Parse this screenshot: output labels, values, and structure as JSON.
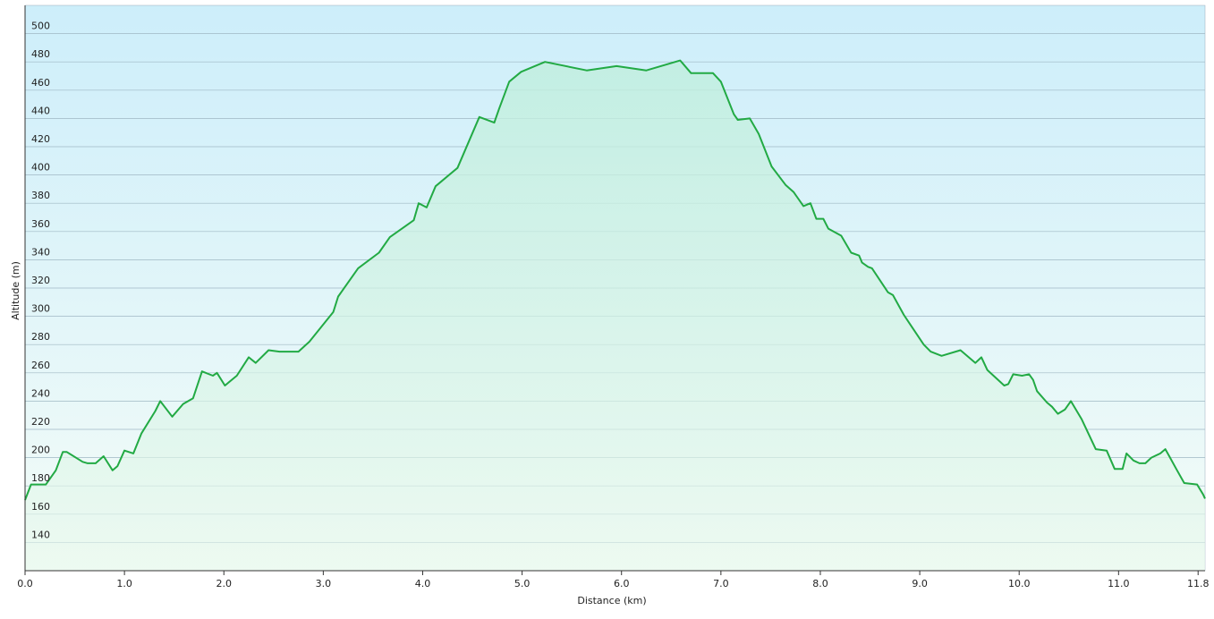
{
  "chart_data": {
    "type": "line",
    "xlabel": "Distance  (km)",
    "ylabel": "Altitude (m)",
    "x": [
      0,
      0.06,
      0.21,
      0.31,
      0.38,
      0.42,
      0.58,
      0.63,
      0.71,
      0.79,
      0.88,
      0.93,
      1.0,
      1.09,
      1.17,
      1.31,
      1.36,
      1.48,
      1.59,
      1.69,
      1.78,
      1.89,
      1.93,
      2.01,
      2.13,
      2.25,
      2.32,
      2.45,
      2.56,
      2.75,
      2.86,
      3.1,
      3.15,
      3.35,
      3.56,
      3.67,
      3.91,
      3.96,
      4.04,
      4.13,
      4.35,
      4.57,
      4.72,
      4.77,
      4.87,
      4.99,
      5.23,
      5.65,
      5.95,
      6.25,
      6.59,
      6.7,
      6.92,
      7.0,
      7.13,
      7.17,
      7.29,
      7.38,
      7.51,
      7.65,
      7.73,
      7.83,
      7.9,
      7.96,
      8.03,
      8.08,
      8.21,
      8.31,
      8.39,
      8.42,
      8.48,
      8.52,
      8.68,
      8.73,
      8.84,
      9.04,
      9.11,
      9.22,
      9.41,
      9.56,
      9.62,
      9.68,
      9.85,
      9.89,
      9.94,
      10.03,
      10.1,
      10.14,
      10.18,
      10.28,
      10.33,
      10.39,
      10.46,
      10.52,
      10.63,
      10.77,
      10.88,
      10.93,
      10.96,
      11.04,
      11.08,
      11.15,
      11.21,
      11.27,
      11.33,
      11.42,
      11.47,
      11.51,
      11.58,
      11.66,
      11.79,
      11.85,
      11.87
    ],
    "values": [
      170,
      181,
      181,
      191,
      204,
      204,
      197,
      196,
      196,
      201,
      191,
      194,
      205,
      203,
      217,
      233,
      240,
      229,
      238,
      242,
      261,
      258,
      260,
      251,
      258,
      271,
      267,
      276,
      275,
      275,
      282,
      303,
      314,
      334,
      345,
      356,
      368,
      380,
      377,
      392,
      405,
      441,
      437,
      447,
      466,
      473,
      480,
      474,
      477,
      474,
      481,
      472,
      472,
      466,
      443,
      439,
      440,
      429,
      406,
      393,
      388,
      378,
      380,
      369,
      369,
      362,
      357,
      345,
      343,
      338,
      335,
      334,
      317,
      315,
      301,
      280,
      275,
      272,
      276,
      267,
      271,
      262,
      251,
      252,
      259,
      258,
      259,
      255,
      247,
      239,
      236,
      231,
      234,
      240,
      227,
      206,
      205,
      197,
      192,
      192,
      203,
      198,
      196,
      196,
      200,
      203,
      206,
      201,
      192,
      182,
      181,
      174,
      171
    ],
    "color": "#22aa44",
    "xlim": [
      0,
      11.87
    ],
    "ylim": [
      120,
      520
    ],
    "xticks": [
      {
        "value": 0,
        "label": "0.0"
      },
      {
        "value": 1,
        "label": "1.0"
      },
      {
        "value": 2,
        "label": "2.0"
      },
      {
        "value": 3,
        "label": "3.0"
      },
      {
        "value": 4,
        "label": "4.0"
      },
      {
        "value": 5,
        "label": "5.0"
      },
      {
        "value": 6,
        "label": "6.0"
      },
      {
        "value": 7,
        "label": "7.0"
      },
      {
        "value": 8,
        "label": "8.0"
      },
      {
        "value": 9,
        "label": "9.0"
      },
      {
        "value": 10,
        "label": "10.0"
      },
      {
        "value": 11,
        "label": "11.0"
      },
      {
        "value": 11.8,
        "label": "11.8"
      }
    ],
    "yticks": [
      140,
      160,
      180,
      200,
      220,
      240,
      260,
      280,
      300,
      320,
      340,
      360,
      380,
      400,
      420,
      440,
      460,
      480,
      500
    ],
    "grid": true
  }
}
